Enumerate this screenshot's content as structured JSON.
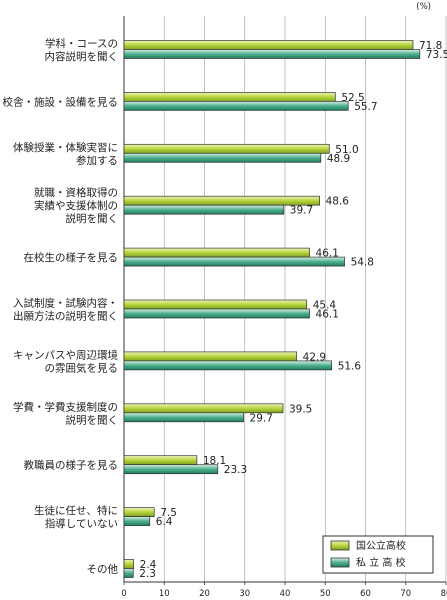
{
  "chart_data": {
    "type": "bar",
    "orientation": "horizontal",
    "unit": "(%)",
    "categories": [
      [
        "学科・コースの",
        "内容説明を聞く"
      ],
      [
        "校舎・施設・設備を見る"
      ],
      [
        "体験授業・体験実習に",
        "参加する"
      ],
      [
        "就職・資格取得の",
        "実績や支援体制の",
        "説明を聞く"
      ],
      [
        "在校生の様子を見る"
      ],
      [
        "入試制度・試験内容・",
        "出願方法の説明を聞く"
      ],
      [
        "キャンパスや周辺環境",
        "の雰囲気を見る"
      ],
      [
        "学費・学費支援制度の",
        "説明を聞く"
      ],
      [
        "教職員の様子を見る"
      ],
      [
        "生徒に任せ、特に",
        "指導していない"
      ],
      [
        "その他"
      ]
    ],
    "series": [
      {
        "name": "国公立高校",
        "values": [
          71.8,
          52.5,
          51.0,
          48.6,
          46.1,
          45.4,
          42.9,
          39.5,
          18.1,
          7.5,
          2.4
        ],
        "color": "#a9c832"
      },
      {
        "name": "私立高校",
        "values": [
          73.5,
          55.7,
          48.9,
          39.7,
          54.8,
          46.1,
          51.6,
          29.7,
          23.3,
          6.4,
          2.3
        ],
        "color": "#3fa384"
      }
    ],
    "value_labels": [
      [
        "71.8",
        "52.5",
        "51.0",
        "48.6",
        "46.1",
        "45.4",
        "42.9",
        "39.5",
        "18.1",
        "7.5",
        "2.4"
      ],
      [
        "73.5",
        "55.7",
        "48.9",
        "39.7",
        "54.8",
        "46.1",
        "51.6",
        "29.7",
        "23.3",
        "6.4",
        "2.3"
      ]
    ],
    "xlim": [
      0,
      80
    ],
    "xticks": [
      "0",
      "10",
      "20",
      "30",
      "40",
      "50",
      "60",
      "70",
      "80"
    ],
    "legend": {
      "position": "bottom-right",
      "labels": [
        "国公立高校",
        "私 立 高 校"
      ]
    },
    "grid": true
  }
}
